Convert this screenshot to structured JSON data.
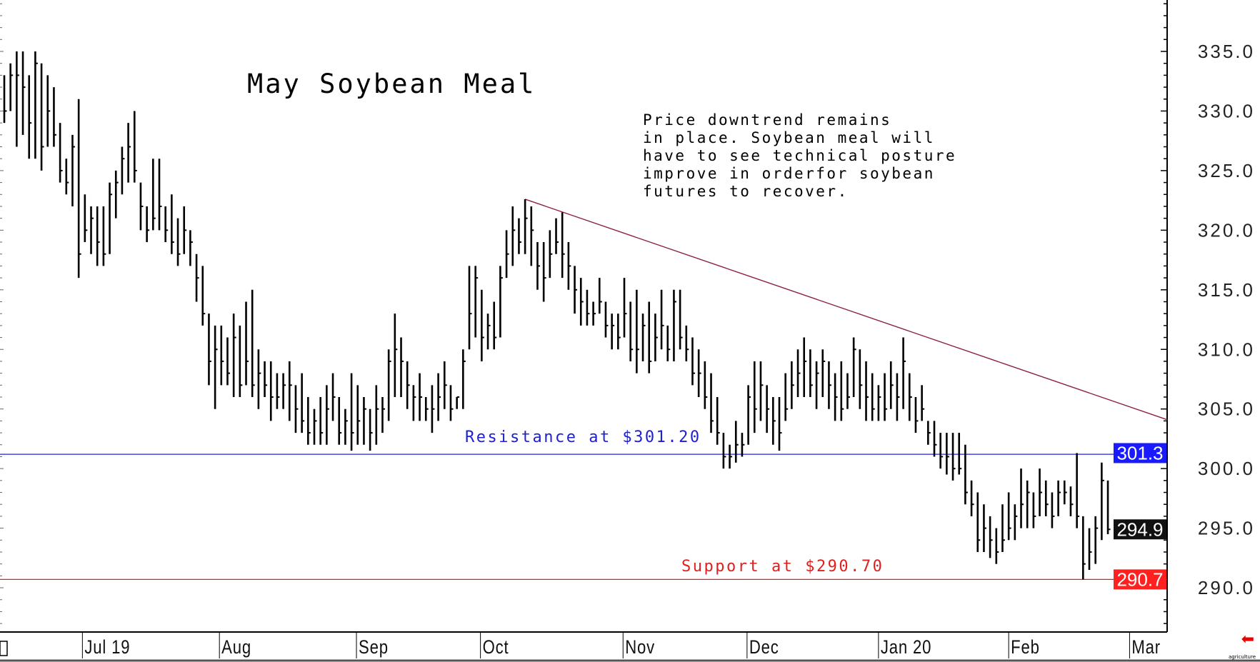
{
  "chart_data": {
    "type": "ohlc-bar",
    "title": "May Soybean Meal",
    "annotation": "Price downtrend remains\nin place. Soybean meal will\nhave to see technical posture\nimprove in orderfor soybean\nfutures to recover.",
    "ylim": [
      283.5,
      338
    ],
    "y_ticks": [
      "335.0",
      "330.0",
      "325.0",
      "320.0",
      "315.0",
      "310.0",
      "305.0",
      "300.0",
      "295.0",
      "290.0"
    ],
    "x_ticks": [
      {
        "label": "Jul 19",
        "bar": 12.6
      },
      {
        "label": "Aug",
        "bar": 34.7
      },
      {
        "label": "Sep",
        "bar": 56.8
      },
      {
        "label": "Oct",
        "bar": 76.8
      },
      {
        "label": "Nov",
        "bar": 99.8
      },
      {
        "label": "Dec",
        "bar": 119.8
      },
      {
        "label": "Jan 20",
        "bar": 141
      },
      {
        "label": "Feb",
        "bar": 162
      },
      {
        "label": "Mar",
        "bar": 181.5
      }
    ],
    "bar_fields": [
      "high",
      "low",
      "close"
    ],
    "bars": [
      [
        333,
        329,
        330
      ],
      [
        334,
        330,
        333
      ],
      [
        335,
        327,
        333
      ],
      [
        335,
        328,
        332
      ],
      [
        333,
        326,
        329
      ],
      [
        335,
        326,
        334
      ],
      [
        334,
        325,
        327
      ],
      [
        333,
        327,
        330
      ],
      [
        332,
        327,
        328
      ],
      [
        329,
        324,
        325
      ],
      [
        326,
        323,
        324
      ],
      [
        328,
        322,
        327
      ],
      [
        331,
        316,
        318
      ],
      [
        323,
        319,
        320
      ],
      [
        322,
        318,
        321
      ],
      [
        322,
        317,
        319
      ],
      [
        322,
        317,
        318
      ],
      [
        324,
        318,
        323
      ],
      [
        325,
        321,
        324
      ],
      [
        327,
        323,
        326
      ],
      [
        329,
        324,
        327
      ],
      [
        330,
        324,
        325
      ],
      [
        324,
        320,
        322
      ],
      [
        322,
        319,
        320
      ],
      [
        326,
        320,
        321
      ],
      [
        326,
        320,
        322
      ],
      [
        322,
        319,
        320
      ],
      [
        323,
        318,
        319
      ],
      [
        321,
        317,
        318
      ],
      [
        322,
        318,
        320
      ],
      [
        320,
        317,
        319
      ],
      [
        318,
        314,
        316
      ],
      [
        317,
        312,
        313
      ],
      [
        313,
        307,
        309
      ],
      [
        312,
        305,
        310
      ],
      [
        312,
        307,
        309
      ],
      [
        311,
        307,
        308
      ],
      [
        313,
        306,
        311
      ],
      [
        312,
        306,
        307
      ],
      [
        314,
        307,
        309
      ],
      [
        315,
        306,
        307
      ],
      [
        310,
        305,
        308
      ],
      [
        309,
        306,
        307
      ],
      [
        309,
        304,
        306
      ],
      [
        308,
        305,
        306
      ],
      [
        308,
        305,
        307
      ],
      [
        309,
        304,
        307
      ],
      [
        307,
        303,
        305
      ],
      [
        308,
        303,
        304
      ],
      [
        306,
        302,
        303
      ],
      [
        305,
        302,
        304
      ],
      [
        306,
        302,
        303
      ],
      [
        307,
        302,
        305
      ],
      [
        308,
        304,
        306
      ],
      [
        306,
        302,
        303
      ],
      [
        305,
        302,
        304
      ],
      [
        308,
        301.5,
        303
      ],
      [
        307,
        302,
        304
      ],
      [
        306,
        302,
        305
      ],
      [
        305,
        301.5,
        303
      ],
      [
        307,
        302,
        305
      ],
      [
        306,
        303,
        305
      ],
      [
        310,
        304,
        309
      ],
      [
        313,
        306,
        310
      ],
      [
        311,
        306,
        309
      ],
      [
        309,
        305,
        307
      ],
      [
        307,
        304,
        306
      ],
      [
        308,
        304,
        306
      ],
      [
        306,
        304,
        305
      ],
      [
        307,
        303,
        305
      ],
      [
        308,
        304,
        306
      ],
      [
        309,
        305,
        307
      ],
      [
        307,
        304,
        305
      ],
      [
        306,
        305,
        306
      ],
      [
        310,
        305,
        309
      ],
      [
        317,
        310,
        313
      ],
      [
        317,
        311,
        316
      ],
      [
        315,
        309,
        311
      ],
      [
        313,
        310,
        312
      ],
      [
        314,
        310,
        311
      ],
      [
        317,
        311,
        316
      ],
      [
        320,
        316,
        318
      ],
      [
        322,
        317,
        320
      ],
      [
        321,
        318,
        319
      ],
      [
        322.6,
        318,
        321
      ],
      [
        322,
        317,
        320
      ],
      [
        319,
        315,
        317
      ],
      [
        319,
        314,
        316
      ],
      [
        320,
        316,
        318
      ],
      [
        321,
        318,
        319
      ],
      [
        321.5,
        316,
        318
      ],
      [
        319,
        315,
        317
      ],
      [
        317,
        313,
        315
      ],
      [
        316,
        312,
        314
      ],
      [
        315,
        312,
        313
      ],
      [
        314,
        312,
        313
      ],
      [
        316,
        313,
        314
      ],
      [
        314,
        311,
        312
      ],
      [
        313,
        310,
        312
      ],
      [
        313,
        310,
        311
      ],
      [
        316,
        311,
        313
      ],
      [
        314,
        309,
        310
      ],
      [
        315,
        308,
        310
      ],
      [
        313,
        309,
        312
      ],
      [
        314,
        308,
        309
      ],
      [
        313,
        309,
        311
      ],
      [
        315,
        310,
        312
      ],
      [
        312,
        309,
        310
      ],
      [
        315,
        309,
        314
      ],
      [
        315,
        310,
        311
      ],
      [
        312,
        309,
        310
      ],
      [
        311,
        307,
        308
      ],
      [
        310,
        306,
        308
      ],
      [
        309,
        305,
        306
      ],
      [
        308,
        303,
        304
      ],
      [
        306,
        302,
        303
      ],
      [
        303,
        300,
        301
      ],
      [
        302,
        300,
        301
      ],
      [
        304,
        300.5,
        302
      ],
      [
        303,
        301,
        302
      ],
      [
        307,
        302,
        306
      ],
      [
        309,
        303,
        305
      ],
      [
        309,
        304,
        307
      ],
      [
        307,
        303,
        305
      ],
      [
        306,
        302,
        304
      ],
      [
        306,
        301.5,
        303
      ],
      [
        308,
        304,
        305
      ],
      [
        309,
        305,
        307
      ],
      [
        310,
        306,
        308
      ],
      [
        311,
        306,
        309
      ],
      [
        310,
        306,
        307
      ],
      [
        309,
        305,
        308
      ],
      [
        310,
        306,
        309
      ],
      [
        309,
        305,
        307
      ],
      [
        308,
        304,
        306
      ],
      [
        309,
        304,
        305
      ],
      [
        308,
        305,
        306
      ],
      [
        311,
        306,
        310
      ],
      [
        310,
        305,
        307
      ],
      [
        309,
        304,
        306
      ],
      [
        308,
        304,
        305
      ],
      [
        307,
        304,
        306
      ],
      [
        308,
        304,
        305
      ],
      [
        309,
        305,
        307
      ],
      [
        308,
        304,
        306
      ],
      [
        311,
        305,
        309
      ],
      [
        308,
        304,
        306
      ],
      [
        306,
        303,
        304
      ],
      [
        307,
        304,
        305
      ],
      [
        304,
        302,
        303
      ],
      [
        304,
        301,
        302
      ],
      [
        303,
        300,
        301
      ],
      [
        303,
        299.5,
        301
      ],
      [
        303,
        299,
        300
      ],
      [
        303,
        299.5,
        300
      ],
      [
        302,
        297,
        298
      ],
      [
        299,
        296,
        297
      ],
      [
        298,
        293,
        294
      ],
      [
        297,
        293,
        295
      ],
      [
        296,
        292.5,
        294
      ],
      [
        295,
        292,
        293
      ],
      [
        297,
        293,
        294
      ],
      [
        298,
        294,
        295
      ],
      [
        297,
        294,
        296
      ],
      [
        300,
        295,
        297
      ],
      [
        299,
        295,
        298
      ],
      [
        298,
        295,
        296
      ],
      [
        300,
        296,
        298
      ],
      [
        299,
        296,
        297
      ],
      [
        298,
        295,
        296
      ],
      [
        299,
        296,
        298
      ],
      [
        299,
        297,
        298
      ],
      [
        298.5,
        296,
        297
      ],
      [
        301.3,
        295,
        296
      ],
      [
        296,
        290.7,
        292
      ],
      [
        295,
        291.5,
        293
      ],
      [
        296,
        292,
        295
      ],
      [
        300.5,
        294,
        299
      ],
      [
        299,
        294.5,
        294.9
      ]
    ],
    "trendline": {
      "start_bar": 84,
      "start_price": 322.6,
      "end_price": 304.1,
      "color": "#8b2040"
    },
    "resistance": {
      "price": 301.2,
      "label": "Resistance at $301.20",
      "color": "#2020e0"
    },
    "support": {
      "price": 290.7,
      "label": "Support at $290.70",
      "color": "#e02020"
    },
    "price_markers": [
      {
        "label": "301.3",
        "price": 301.3,
        "color": "#1a1aff"
      },
      {
        "label": "294.9",
        "price": 294.9,
        "color": "#111111"
      },
      {
        "label": "290.7",
        "price": 290.7,
        "color": "#ff2020"
      }
    ],
    "grid": false
  },
  "watermark": "agriculture",
  "nav_arrow_icon": "red-left-arrow"
}
